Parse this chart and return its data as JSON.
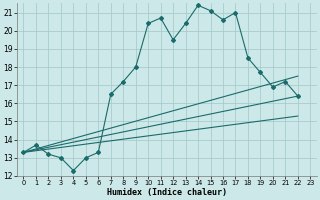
{
  "xlabel": "Humidex (Indice chaleur)",
  "background_color": "#cde8e8",
  "grid_color": "#a8cccc",
  "line_color": "#1a6b6b",
  "xlim": [
    -0.5,
    23.5
  ],
  "ylim": [
    12,
    21.5
  ],
  "yticks": [
    12,
    13,
    14,
    15,
    16,
    17,
    18,
    19,
    20,
    21
  ],
  "xticks": [
    0,
    1,
    2,
    3,
    4,
    5,
    6,
    7,
    8,
    9,
    10,
    11,
    12,
    13,
    14,
    15,
    16,
    17,
    18,
    19,
    20,
    21,
    22,
    23
  ],
  "line1_x": [
    0,
    1,
    2,
    3,
    4,
    5,
    6,
    7,
    8,
    9,
    10,
    11,
    12,
    13,
    14,
    15,
    16,
    17,
    18,
    19,
    20,
    21,
    22
  ],
  "line1_y": [
    13.3,
    13.7,
    13.2,
    13.0,
    12.3,
    13.0,
    13.3,
    16.5,
    17.2,
    18.0,
    20.4,
    20.7,
    19.5,
    20.4,
    21.4,
    21.1,
    20.6,
    21.0,
    18.5,
    17.7,
    16.9,
    17.2,
    16.4
  ],
  "line2_x": [
    0,
    22
  ],
  "line2_y": [
    13.3,
    16.4
  ],
  "line3_x": [
    0,
    22
  ],
  "line3_y": [
    13.3,
    17.5
  ],
  "line4_x": [
    0,
    22
  ],
  "line4_y": [
    13.3,
    15.3
  ]
}
